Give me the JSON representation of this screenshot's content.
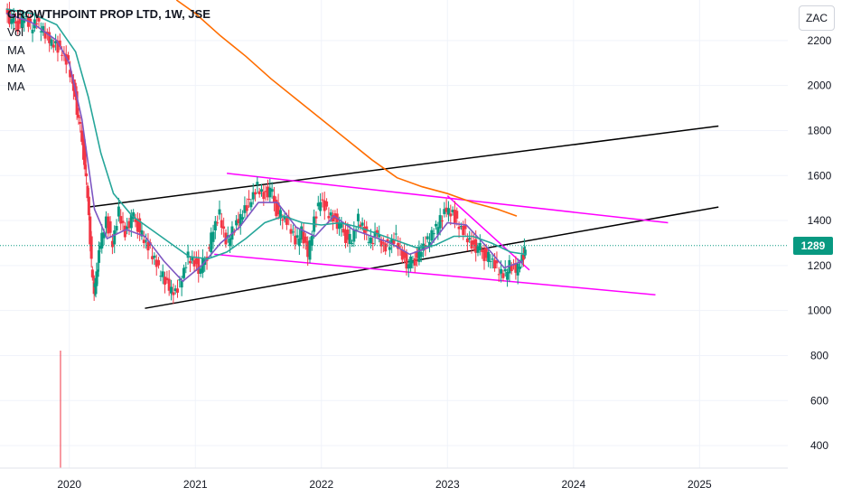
{
  "legend": {
    "title": "GROWTHPOINT PROP LTD, 1W, JSE",
    "vol": "Vol",
    "ma1": "MA",
    "ma2": "MA",
    "ma3": "MA"
  },
  "currency_button": "ZAC",
  "last_price_label": "1289",
  "colors": {
    "up": "#089981",
    "down": "#f23645",
    "ma_fast": "#7e57c2",
    "ma_mid": "#26a69a",
    "ma_slow": "#ff6d00",
    "trend_black": "#000000",
    "trend_magenta": "#ff00ff",
    "volume": "#f23645"
  },
  "chart_data": {
    "type": "candlestick",
    "title": "GROWTHPOINT PROP LTD, 1W, JSE",
    "ylim": [
      300,
      2380
    ],
    "y_ticks": [
      400,
      600,
      800,
      1000,
      1200,
      1400,
      1600,
      1800,
      2000,
      2200
    ],
    "x_ticks": [
      "2020",
      "2021",
      "2022",
      "2023",
      "2024",
      "2025"
    ],
    "xlim": [
      2019.45,
      2025.7
    ],
    "last_price": 1289,
    "price_path": [
      [
        2019.5,
        2330
      ],
      [
        2019.55,
        2290
      ],
      [
        2019.6,
        2270
      ],
      [
        2019.65,
        2300
      ],
      [
        2019.7,
        2250
      ],
      [
        2019.75,
        2280
      ],
      [
        2019.8,
        2240
      ],
      [
        2019.85,
        2200
      ],
      [
        2019.9,
        2180
      ],
      [
        2019.95,
        2150
      ],
      [
        2020.0,
        2100
      ],
      [
        2020.04,
        2000
      ],
      [
        2020.08,
        1850
      ],
      [
        2020.12,
        1700
      ],
      [
        2020.15,
        1500
      ],
      [
        2020.18,
        1200
      ],
      [
        2020.2,
        1080
      ],
      [
        2020.22,
        1150
      ],
      [
        2020.25,
        1300
      ],
      [
        2020.3,
        1400
      ],
      [
        2020.35,
        1300
      ],
      [
        2020.4,
        1450
      ],
      [
        2020.45,
        1350
      ],
      [
        2020.5,
        1420
      ],
      [
        2020.55,
        1380
      ],
      [
        2020.6,
        1300
      ],
      [
        2020.65,
        1260
      ],
      [
        2020.7,
        1200
      ],
      [
        2020.75,
        1150
      ],
      [
        2020.8,
        1100
      ],
      [
        2020.85,
        1080
      ],
      [
        2020.9,
        1150
      ],
      [
        2020.95,
        1250
      ],
      [
        2021.0,
        1220
      ],
      [
        2021.05,
        1180
      ],
      [
        2021.1,
        1250
      ],
      [
        2021.15,
        1350
      ],
      [
        2021.2,
        1420
      ],
      [
        2021.25,
        1300
      ],
      [
        2021.3,
        1350
      ],
      [
        2021.35,
        1400
      ],
      [
        2021.4,
        1450
      ],
      [
        2021.45,
        1500
      ],
      [
        2021.5,
        1560
      ],
      [
        2021.55,
        1520
      ],
      [
        2021.6,
        1540
      ],
      [
        2021.65,
        1450
      ],
      [
        2021.7,
        1400
      ],
      [
        2021.75,
        1380
      ],
      [
        2021.8,
        1300
      ],
      [
        2021.85,
        1350
      ],
      [
        2021.9,
        1250
      ],
      [
        2021.95,
        1400
      ],
      [
        2022.0,
        1500
      ],
      [
        2022.05,
        1450
      ],
      [
        2022.1,
        1420
      ],
      [
        2022.15,
        1380
      ],
      [
        2022.2,
        1330
      ],
      [
        2022.25,
        1300
      ],
      [
        2022.3,
        1400
      ],
      [
        2022.35,
        1350
      ],
      [
        2022.4,
        1300
      ],
      [
        2022.45,
        1350
      ],
      [
        2022.5,
        1280
      ],
      [
        2022.55,
        1300
      ],
      [
        2022.6,
        1330
      ],
      [
        2022.65,
        1250
      ],
      [
        2022.7,
        1200
      ],
      [
        2022.75,
        1230
      ],
      [
        2022.8,
        1260
      ],
      [
        2022.85,
        1300
      ],
      [
        2022.9,
        1350
      ],
      [
        2022.95,
        1400
      ],
      [
        2023.0,
        1450
      ],
      [
        2023.05,
        1430
      ],
      [
        2023.1,
        1380
      ],
      [
        2023.15,
        1350
      ],
      [
        2023.2,
        1300
      ],
      [
        2023.25,
        1280
      ],
      [
        2023.3,
        1250
      ],
      [
        2023.35,
        1220
      ],
      [
        2023.4,
        1180
      ],
      [
        2023.45,
        1150
      ],
      [
        2023.5,
        1200
      ],
      [
        2023.55,
        1180
      ],
      [
        2023.6,
        1230
      ],
      [
        2023.62,
        1289
      ]
    ],
    "ma_fast": [
      [
        2019.5,
        2320
      ],
      [
        2019.7,
        2280
      ],
      [
        2019.9,
        2200
      ],
      [
        2020.0,
        2100
      ],
      [
        2020.1,
        1850
      ],
      [
        2020.2,
        1450
      ],
      [
        2020.3,
        1320
      ],
      [
        2020.45,
        1360
      ],
      [
        2020.6,
        1330
      ],
      [
        2020.75,
        1220
      ],
      [
        2020.9,
        1130
      ],
      [
        2021.05,
        1200
      ],
      [
        2021.2,
        1300
      ],
      [
        2021.35,
        1370
      ],
      [
        2021.5,
        1480
      ],
      [
        2021.65,
        1480
      ],
      [
        2021.8,
        1370
      ],
      [
        2021.95,
        1330
      ],
      [
        2022.1,
        1420
      ],
      [
        2022.25,
        1360
      ],
      [
        2022.4,
        1330
      ],
      [
        2022.55,
        1300
      ],
      [
        2022.7,
        1250
      ],
      [
        2022.85,
        1280
      ],
      [
        2023.0,
        1390
      ],
      [
        2023.15,
        1380
      ],
      [
        2023.3,
        1290
      ],
      [
        2023.45,
        1190
      ],
      [
        2023.6,
        1220
      ]
    ],
    "ma_mid": [
      [
        2019.5,
        2340
      ],
      [
        2019.7,
        2320
      ],
      [
        2019.9,
        2270
      ],
      [
        2020.05,
        2150
      ],
      [
        2020.15,
        1950
      ],
      [
        2020.25,
        1700
      ],
      [
        2020.35,
        1520
      ],
      [
        2020.5,
        1420
      ],
      [
        2020.65,
        1360
      ],
      [
        2020.8,
        1300
      ],
      [
        2020.95,
        1240
      ],
      [
        2021.1,
        1230
      ],
      [
        2021.25,
        1260
      ],
      [
        2021.4,
        1320
      ],
      [
        2021.55,
        1390
      ],
      [
        2021.7,
        1420
      ],
      [
        2021.85,
        1390
      ],
      [
        2022.0,
        1380
      ],
      [
        2022.15,
        1390
      ],
      [
        2022.3,
        1370
      ],
      [
        2022.45,
        1340
      ],
      [
        2022.6,
        1310
      ],
      [
        2022.75,
        1280
      ],
      [
        2022.9,
        1290
      ],
      [
        2023.05,
        1330
      ],
      [
        2023.2,
        1330
      ],
      [
        2023.35,
        1300
      ],
      [
        2023.5,
        1260
      ],
      [
        2023.62,
        1250
      ]
    ],
    "ma_slow": [
      [
        2020.85,
        2380
      ],
      [
        2021.0,
        2320
      ],
      [
        2021.2,
        2220
      ],
      [
        2021.4,
        2130
      ],
      [
        2021.6,
        2030
      ],
      [
        2021.8,
        1940
      ],
      [
        2022.0,
        1850
      ],
      [
        2022.2,
        1760
      ],
      [
        2022.4,
        1670
      ],
      [
        2022.6,
        1590
      ],
      [
        2022.8,
        1550
      ],
      [
        2023.0,
        1520
      ],
      [
        2023.2,
        1480
      ],
      [
        2023.4,
        1450
      ],
      [
        2023.55,
        1420
      ]
    ],
    "volume_spike": {
      "x": 2019.93,
      "label": "Vol"
    },
    "trendlines": [
      {
        "color": "black",
        "from": [
          2020.15,
          1460
        ],
        "to": [
          2025.15,
          1820
        ]
      },
      {
        "color": "black",
        "from": [
          2020.6,
          1010
        ],
        "to": [
          2025.15,
          1460
        ]
      },
      {
        "color": "magenta",
        "from": [
          2021.25,
          1610
        ],
        "to": [
          2024.75,
          1390
        ]
      },
      {
        "color": "magenta",
        "from": [
          2021.15,
          1250
        ],
        "to": [
          2024.65,
          1070
        ]
      },
      {
        "color": "magenta",
        "from": [
          2023.0,
          1510
        ],
        "to": [
          2023.65,
          1180
        ]
      }
    ]
  }
}
